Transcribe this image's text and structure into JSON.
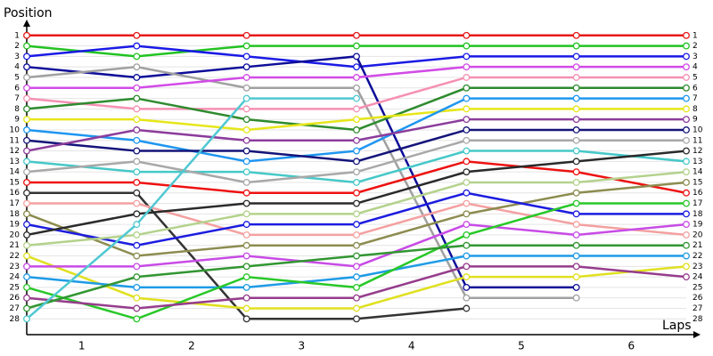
{
  "chart_data": {
    "type": "line",
    "y_axis_title": "Position",
    "x_axis_title": "Laps",
    "x": [
      0,
      1,
      2,
      3,
      4,
      5,
      6
    ],
    "xlim": [
      0,
      6
    ],
    "xticks": [
      {
        "value": 0.5,
        "label": "1"
      },
      {
        "value": 1.5,
        "label": "2"
      },
      {
        "value": 2.5,
        "label": "3"
      },
      {
        "value": 3.5,
        "label": "4"
      },
      {
        "value": 4.5,
        "label": "5"
      },
      {
        "value": 5.5,
        "label": "6"
      }
    ],
    "ylim": [
      29.5,
      0
    ],
    "yticks": [
      1,
      2,
      3,
      4,
      5,
      6,
      7,
      8,
      9,
      10,
      11,
      12,
      13,
      14,
      15,
      16,
      17,
      18,
      19,
      20,
      21,
      22,
      23,
      24,
      25,
      26,
      27,
      28
    ],
    "grid": true,
    "series": [
      {
        "color": "#e61919",
        "values": [
          1,
          1,
          1,
          1,
          1,
          1,
          1
        ]
      },
      {
        "color": "#22c322",
        "values": [
          2,
          3,
          2,
          2,
          2,
          2,
          2
        ]
      },
      {
        "color": "#1a1ae6",
        "values": [
          3,
          2,
          3,
          4,
          3,
          3,
          3
        ]
      },
      {
        "color": "#0d0d99",
        "values": [
          4,
          5,
          4,
          3,
          25,
          25,
          null
        ]
      },
      {
        "color": "#a0a0a0",
        "values": [
          5,
          4,
          6,
          6,
          26,
          26,
          null
        ]
      },
      {
        "color": "#d24be6",
        "values": [
          6,
          6,
          5,
          5,
          4,
          4,
          4
        ]
      },
      {
        "color": "#f590b4",
        "values": [
          7,
          8,
          8,
          8,
          5,
          5,
          5
        ]
      },
      {
        "color": "#2e8b2e",
        "values": [
          8,
          7,
          9,
          10,
          6,
          6,
          6
        ]
      },
      {
        "color": "#e6e619",
        "values": [
          9,
          9,
          10,
          9,
          8,
          8,
          8
        ]
      },
      {
        "color": "#1e96f0",
        "values": [
          10,
          11,
          13,
          12,
          7,
          7,
          7
        ]
      },
      {
        "color": "#14147a",
        "values": [
          11,
          12,
          12,
          13,
          10,
          10,
          10
        ]
      },
      {
        "color": "#8c3c9c",
        "values": [
          12,
          10,
          11,
          11,
          9,
          9,
          9
        ]
      },
      {
        "color": "#46c8c8",
        "values": [
          13,
          14,
          14,
          15,
          12,
          12,
          13
        ]
      },
      {
        "color": "#a8a8a8",
        "values": [
          14,
          13,
          15,
          14,
          11,
          11,
          11
        ]
      },
      {
        "color": "#ee1111",
        "values": [
          15,
          15,
          16,
          16,
          13,
          14,
          16
        ]
      },
      {
        "color": "#333333",
        "values": [
          16,
          16,
          28,
          28,
          27,
          null,
          null
        ]
      },
      {
        "color": "#f4a0a0",
        "values": [
          17,
          17,
          20,
          20,
          17,
          19,
          20
        ]
      },
      {
        "color": "#8c8c50",
        "values": [
          18,
          22,
          21,
          21,
          18,
          16,
          15
        ]
      },
      {
        "color": "#1c1ce0",
        "values": [
          19,
          21,
          19,
          19,
          16,
          18,
          18
        ]
      },
      {
        "color": "#2a2a2a",
        "values": [
          20,
          18,
          17,
          17,
          14,
          13,
          12
        ]
      },
      {
        "color": "#b4d28c",
        "values": [
          21,
          20,
          18,
          18,
          15,
          15,
          14
        ]
      },
      {
        "color": "#e0e020",
        "values": [
          22,
          26,
          27,
          27,
          24,
          24,
          23
        ]
      },
      {
        "color": "#c84be6",
        "values": [
          23,
          23,
          22,
          23,
          19,
          20,
          19
        ]
      },
      {
        "color": "#1e9be6",
        "values": [
          24,
          25,
          25,
          24,
          22,
          22,
          22
        ]
      },
      {
        "color": "#28c828",
        "values": [
          25,
          28,
          24,
          25,
          20,
          17,
          17
        ]
      },
      {
        "color": "#963c8c",
        "values": [
          26,
          27,
          26,
          26,
          23,
          23,
          24
        ]
      },
      {
        "color": "#329632",
        "values": [
          27,
          24,
          23,
          22,
          21,
          21,
          21
        ]
      },
      {
        "color": "#50c8d2",
        "values": [
          28,
          19,
          7,
          7,
          null,
          null,
          null
        ]
      }
    ]
  }
}
